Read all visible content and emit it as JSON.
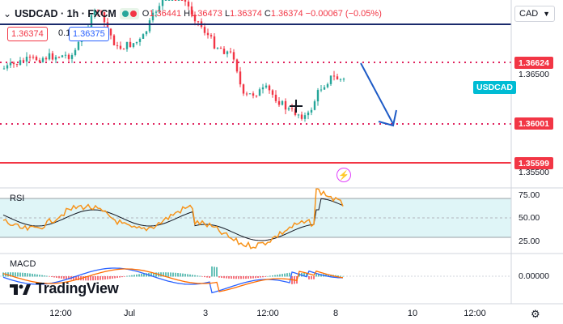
{
  "header": {
    "symbol": "USDCAD · 1h · FXCM",
    "ohlc": {
      "o_label": "O",
      "o": "1.36441",
      "h_label": "H",
      "h": "1.36473",
      "l_label": "L",
      "l": "1.36374",
      "c_label": "C",
      "c": "1.36374",
      "change": "−0.00067 (−0.05%)"
    },
    "status_dot_colors": [
      "#26a69a",
      "#f23645"
    ]
  },
  "trade": {
    "sell_price": "1.36374",
    "spread": "0.1",
    "buy_price": "1.36375"
  },
  "currency_select": {
    "value": "CAD"
  },
  "price_axis": {
    "labels": [
      "1.36500",
      "1.35500"
    ],
    "marked": [
      {
        "value": "1.36624",
        "color": "#f23645"
      },
      {
        "value": "1.36001",
        "color": "#f23645"
      },
      {
        "value": "1.35599",
        "color": "#f23645"
      }
    ],
    "symbol_tag": "USDCAD"
  },
  "rsi": {
    "label": "RSI",
    "axis": [
      "75.00",
      "50.00",
      "25.00"
    ]
  },
  "macd": {
    "label": "MACD",
    "axis": [
      "0.00000"
    ]
  },
  "time_axis": {
    "labels": [
      "12:00",
      "Jul",
      "3",
      "12:00",
      "8",
      "10",
      "12:00"
    ]
  },
  "branding": {
    "logo_text": "TradingView"
  },
  "colors": {
    "bull": "#26a69a",
    "bear": "#f23645",
    "rsi_line": "#f7931a",
    "rsi_ma": "#131722",
    "rsi_band": "#dff5f7",
    "macd_line": "#2962ff",
    "signal_line": "#ff6d00",
    "arrow": "#1e5bc6"
  }
}
